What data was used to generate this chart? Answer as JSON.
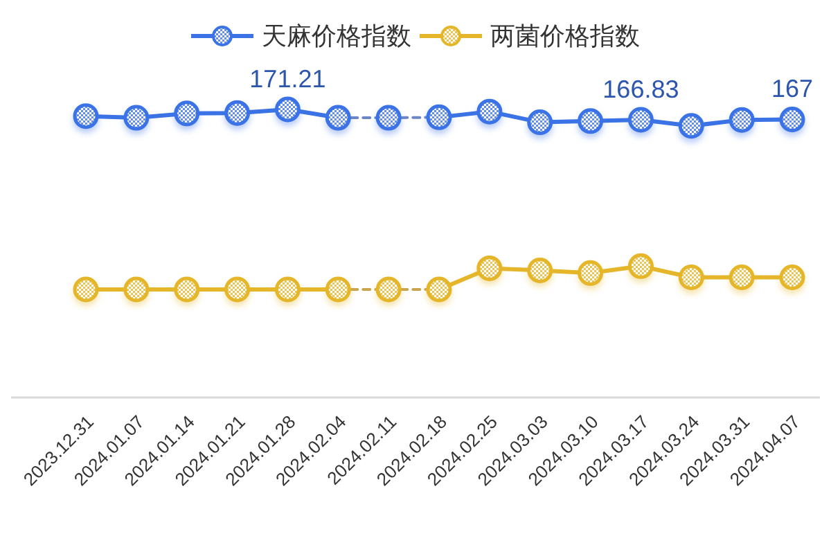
{
  "chart_data": {
    "type": "line",
    "categories": [
      "2023.12.31",
      "2024.01.07",
      "2024.01.14",
      "2024.01.21",
      "2024.01.28",
      "2024.02.04",
      "2024.02.11",
      "2024.02.18",
      "2024.02.25",
      "2024.03.03",
      "2024.03.10",
      "2024.03.17",
      "2024.03.24",
      "2024.03.31",
      "2024.04.07"
    ],
    "series": [
      {
        "name": "天麻价格指数",
        "color": "#3b73e6",
        "marker": "circle",
        "line_style": "solid",
        "values": [
          168.4,
          167.7,
          169.5,
          169.7,
          171.21,
          167.7,
          null,
          167.9,
          170.3,
          165.8,
          166.3,
          166.83,
          164.3,
          166.8,
          167
        ],
        "value_labels": [
          null,
          null,
          null,
          null,
          "171.21",
          null,
          null,
          null,
          null,
          null,
          null,
          "166.83",
          null,
          null,
          "167"
        ]
      },
      {
        "color": "#6d86c6",
        "marker": "none",
        "line_style": "dashed",
        "values": [
          null,
          null,
          null,
          null,
          null,
          167.7,
          167.7,
          167.9,
          null,
          null,
          null,
          null,
          null,
          null,
          null
        ]
      },
      {
        "type": "scatter",
        "color": "#3b73e6",
        "marker": "circle",
        "values": [
          null,
          null,
          null,
          null,
          null,
          null,
          167.7,
          null,
          null,
          null,
          null,
          null,
          null,
          null,
          null
        ]
      },
      {
        "name": "两菌价格指数",
        "color": "#e5b62a",
        "marker": "circle",
        "line_style": "solid",
        "values": [
          95.5,
          95.5,
          95.5,
          95.5,
          95.5,
          95.5,
          null,
          95.5,
          104.4,
          103.5,
          102.4,
          105.3,
          100.6,
          100.6,
          100.6
        ]
      },
      {
        "color": "#c9a64e",
        "marker": "none",
        "line_style": "dashed",
        "values": [
          null,
          null,
          null,
          null,
          null,
          95.5,
          95.5,
          95.5,
          null,
          null,
          null,
          null,
          null,
          null,
          null
        ]
      },
      {
        "type": "scatter",
        "color": "#e5b62a",
        "marker": "circle",
        "values": [
          null,
          null,
          null,
          null,
          null,
          null,
          95.5,
          null,
          null,
          null,
          null,
          null,
          null,
          null,
          null
        ]
      }
    ],
    "tick_labels": "x",
    "legend": "top"
  }
}
